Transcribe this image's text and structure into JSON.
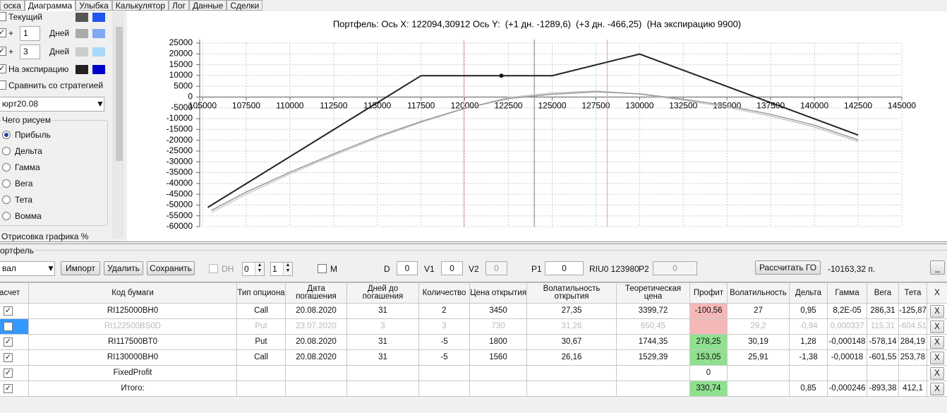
{
  "tabs": [
    "оска",
    "Диаграмма",
    "Улыбка",
    "Калькулятор",
    "Лог",
    "Данные",
    "Сделки"
  ],
  "active_tab": 1,
  "left_panel": {
    "rows": [
      {
        "checked": false,
        "label": "Текущий",
        "colors": [
          "#555555",
          "#2255ee"
        ]
      },
      {
        "checked": true,
        "plus": "+",
        "days": 1,
        "unit": "Дней",
        "colors": [
          "#aaaaaa",
          "#80a8f0"
        ]
      },
      {
        "checked": true,
        "plus": "+",
        "days": 3,
        "unit": "Дней",
        "colors": [
          "#cccccc",
          "#a8d8fa"
        ]
      },
      {
        "checked": true,
        "label": "На экспирацию",
        "colors": [
          "#222222",
          "#0000cc"
        ]
      }
    ],
    "compare": {
      "checked": false,
      "label": "Сравнить со стратегией"
    },
    "dropdown": "юрт20.08",
    "group_title": "Чего рисуем",
    "options": [
      "Прибыль",
      "Дельта",
      "Гамма",
      "Вега",
      "Тета",
      "Вомма"
    ],
    "selected_option": 0,
    "render_label": "Отрисовка графика %"
  },
  "chart_data": {
    "type": "line",
    "title": "Портфель: Ось X: 122094,30912 Ось Y:  (+1 дн. -1289,6)  (+3 дн. -466,25)  (На экспирацию 9900)",
    "xlim": [
      105000,
      145000
    ],
    "xticks": [
      105000,
      107500,
      110000,
      112500,
      115000,
      117500,
      120000,
      122500,
      125000,
      127500,
      130000,
      132500,
      135000,
      137500,
      140000,
      142500,
      145000
    ],
    "ylim": [
      -60000,
      25000
    ],
    "yticks": [
      -60000,
      -55000,
      -50000,
      -45000,
      -40000,
      -35000,
      -30000,
      -25000,
      -20000,
      -15000,
      -10000,
      -5000,
      0,
      5000,
      10000,
      15000,
      20000,
      25000
    ],
    "grid": true,
    "vlines": [
      {
        "value": 119950,
        "color": "#f4a8a8"
      },
      {
        "value": 123980,
        "color": "#909090"
      },
      {
        "value": 128150,
        "color": "#f4a8a8"
      }
    ],
    "series": [
      {
        "color": "#c8c8c8",
        "width": 1.5,
        "x": [
          105500,
          107500,
          110000,
          112500,
          115000,
          117500,
          120000,
          122500,
          125000,
          127500,
          130000,
          132500,
          135000,
          137500,
          140000,
          142500
        ],
        "values": [
          -53500,
          -45000,
          -35600,
          -27000,
          -18900,
          -11700,
          -5300,
          -200,
          1900,
          2800,
          1400,
          -1500,
          -4700,
          -8800,
          -13900,
          -20600
        ]
      },
      {
        "color": "#999999",
        "width": 1.5,
        "x": [
          105500,
          107500,
          110000,
          112500,
          115000,
          117500,
          120000,
          122500,
          125000,
          127500,
          130000,
          132500,
          135000,
          137500,
          140000,
          142500
        ],
        "values": [
          -52500,
          -44000,
          -34800,
          -26300,
          -18300,
          -11300,
          -5200,
          -700,
          1300,
          2400,
          1500,
          -1000,
          -4000,
          -8000,
          -13000,
          -19800
        ]
      },
      {
        "color": "#222222",
        "width": 2,
        "x": [
          105300,
          117500,
          125000,
          130000,
          142500
        ],
        "values": [
          -51100,
          9900,
          9900,
          19900,
          -17600
        ]
      }
    ],
    "marker": {
      "x": 122094.30912,
      "y": 9900,
      "color": "#111111"
    }
  },
  "portfolio": {
    "title": "ортфель",
    "account": "вал",
    "buttons": [
      "Импорт",
      "Удалить",
      "Сохранить"
    ],
    "dh": {
      "label": "DH",
      "checked": false
    },
    "spins": [
      0,
      1
    ],
    "m": {
      "label": "M",
      "checked": false
    },
    "fields": [
      {
        "label": "D",
        "value": 0
      },
      {
        "label": "V1",
        "value": 0
      },
      {
        "label": "V2",
        "value": 0,
        "disabled": true
      },
      {
        "label": "P1",
        "value": 0
      },
      {
        "label": "P2",
        "value": 0,
        "disabled": true
      }
    ],
    "instrument": "RIU0 123980",
    "calc_button": "Рассчитать ГО",
    "margin": "-10163,32 п.",
    "minimize": "_"
  },
  "table": {
    "headers": [
      "асчет",
      "Код бумаги",
      "Тип опциона",
      "Дата погашения",
      "Дней до погашения",
      "Количество",
      "Цена открытия",
      "Волатильность открытия",
      "Теоретическая цена",
      "Профит",
      "Волатильность",
      "Дельта",
      "Гамма",
      "Вега",
      "Тета",
      "X"
    ],
    "rows": [
      {
        "checked": true,
        "profit_color": "#f5b8b8",
        "cells": [
          "RI125000BH0",
          "Call",
          "20.08.2020",
          "31",
          "2",
          "3450",
          "27,35",
          "3399,72",
          "-100,56",
          "27",
          "0,95",
          "8,2E-05",
          "286,31",
          "-125,87"
        ],
        "delete": "X"
      },
      {
        "checked": false,
        "selected": true,
        "disabled": true,
        "profit_color": "#f5b8b8",
        "cells": [
          "RI122500BS0D",
          "Put",
          "23.07.2020",
          "3",
          "3",
          "730",
          "31,26",
          "650,45",
          null,
          "29,2",
          "-0,94",
          "0,000337",
          "115,31",
          "-604,51"
        ],
        "delete": "X"
      },
      {
        "checked": true,
        "profit_color": "#8fe08f",
        "cells": [
          "RI117500BT0",
          "Put",
          "20.08.2020",
          "31",
          "-5",
          "1800",
          "30,67",
          "1744,35",
          "278,25",
          "30,19",
          "1,28",
          "-0,000148",
          "-578,14",
          "284,19"
        ],
        "delete": "X"
      },
      {
        "checked": true,
        "profit_color": "#8fe08f",
        "cells": [
          "RI130000BH0",
          "Call",
          "20.08.2020",
          "31",
          "-5",
          "1560",
          "26,16",
          "1529,39",
          "153,05",
          "25,91",
          "-1,38",
          "-0,00018",
          "-601,55",
          "253,78"
        ],
        "delete": "X"
      },
      {
        "checked": true,
        "cells": [
          "FixedProfit",
          null,
          null,
          null,
          null,
          null,
          null,
          null,
          "0",
          null,
          null,
          null,
          null,
          null
        ],
        "delete": "X"
      },
      {
        "checked": true,
        "profit_color": "#8fe08f",
        "cells": [
          "Итого:",
          null,
          null,
          null,
          null,
          null,
          null,
          null,
          "330,74",
          null,
          "0,85",
          "-0,000246",
          "-893,38",
          "412,1"
        ],
        "delete": "X"
      }
    ]
  }
}
